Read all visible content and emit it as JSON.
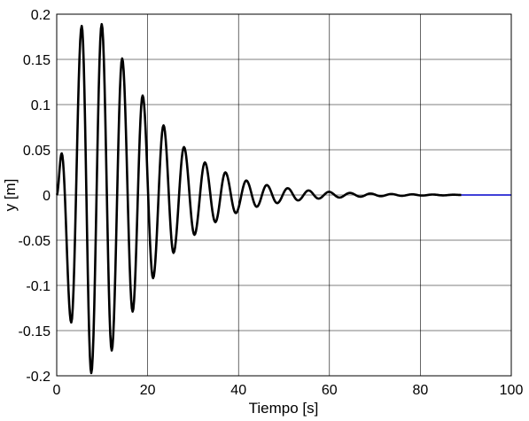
{
  "chart_data": {
    "type": "line",
    "xlabel": "Tiempo [s]",
    "ylabel": "y [m]",
    "xlim": [
      0,
      100
    ],
    "ylim": [
      -0.2,
      0.2
    ],
    "x_ticks": [
      "0",
      "20",
      "40",
      "60",
      "80",
      "100"
    ],
    "y_ticks": [
      "-0.2",
      "-0.15",
      "-0.1",
      "-0.05",
      "0",
      "0.05",
      "0.1",
      "0.15",
      "0.2"
    ],
    "grid": true,
    "series": [
      {
        "color": "#000000",
        "x": [
          0,
          1.1,
          3.2,
          5.5,
          7.6,
          9.9,
          12.1,
          14.4,
          16.7,
          18.9,
          21.2,
          23.5,
          25.7,
          28.0,
          30.3,
          32.6,
          34.9,
          37.1,
          39.4,
          41.7,
          44.0,
          46.2,
          48.5,
          50.8,
          53.1,
          55.4,
          57.6,
          59.9,
          62.2,
          64.5,
          66.8,
          69.0,
          71.3,
          73.6,
          75.9,
          78.2,
          80.4,
          82.7,
          85.0,
          87.3,
          89.0
        ],
        "y": [
          0,
          0.046,
          -0.141,
          0.187,
          -0.197,
          0.189,
          -0.172,
          0.151,
          -0.129,
          0.11,
          -0.092,
          0.077,
          -0.064,
          0.053,
          -0.044,
          0.036,
          -0.03,
          0.025,
          -0.02,
          0.016,
          -0.013,
          0.011,
          -0.009,
          0.0075,
          -0.006,
          0.005,
          -0.004,
          0.0035,
          -0.0028,
          0.0023,
          -0.0019,
          0.0016,
          -0.0013,
          0.0011,
          -0.0009,
          0.0007,
          -0.0006,
          0.0005,
          -0.0004,
          0.0003,
          0
        ]
      },
      {
        "color": "#0000cc",
        "x": [
          89.0,
          100
        ],
        "y": [
          0,
          0
        ]
      }
    ]
  }
}
